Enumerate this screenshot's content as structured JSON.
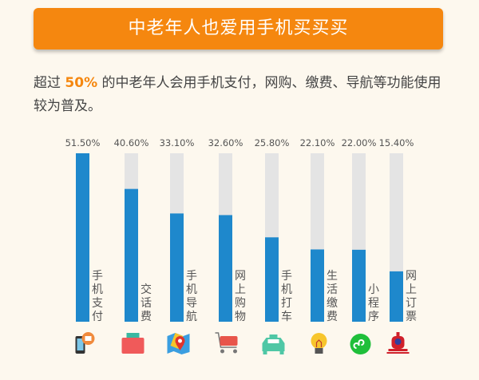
{
  "banner": {
    "title": "中老年人也爱用手机买买买"
  },
  "description": {
    "prefix": "超过 ",
    "highlight": "50%",
    "suffix": " 的中老年人会用手机支付，网购、缴费、导航等功能使用较为普及。"
  },
  "colors": {
    "accent": "#f5870f",
    "bar": "#1e88cc",
    "track": "#e4e4e4",
    "background": "#fdf8ee"
  },
  "chart_data": {
    "type": "bar",
    "categories": [
      "手机支付",
      "交话费",
      "手机导航",
      "网上购物",
      "手机打车",
      "生活缴费",
      "小程序",
      "网上订票"
    ],
    "values": [
      51.5,
      40.6,
      33.1,
      32.6,
      25.8,
      22.1,
      22.0,
      15.4
    ],
    "labels": [
      "51.50%",
      "40.60%",
      "33.10%",
      "32.60%",
      "25.80%",
      "22.10%",
      "22.00%",
      "15.40%"
    ],
    "icons": [
      "phone-payment-icon",
      "wallet-icon",
      "map-pin-icon",
      "shopping-cart-icon",
      "taxi-icon",
      "light-bulb-icon",
      "mini-program-icon",
      "train-icon"
    ],
    "ylim": [
      0,
      51.5
    ],
    "grid": false,
    "legend": "none"
  }
}
